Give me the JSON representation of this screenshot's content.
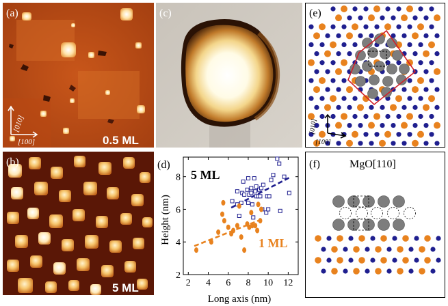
{
  "panels": {
    "a": {
      "label": "(a)",
      "coverage": "0.5 ML",
      "dir1": "[010]",
      "dir2": "[100]"
    },
    "b": {
      "label": "(b)",
      "coverage": "5 ML"
    },
    "c": {
      "label": "(c)"
    },
    "d": {
      "label": "(d)"
    },
    "e": {
      "label": "(e)",
      "dir1": "[010]",
      "dir2": "[100]"
    },
    "f": {
      "label": "(f)",
      "title": "MgO[110]"
    }
  },
  "colors": {
    "orange": "#e8821e",
    "blue": "#1f1f8f",
    "gray": "#7d7d7d",
    "red": "#d0202a"
  },
  "chart_data": {
    "type": "scatter",
    "xlabel": "Long axis (nm)",
    "ylabel": "Height (nm)",
    "xlim": [
      1.5,
      13
    ],
    "ylim": [
      2,
      9.2
    ],
    "xticks": [
      2,
      4,
      6,
      8,
      10,
      12
    ],
    "yticks": [
      2,
      4,
      6,
      8
    ],
    "series": [
      {
        "name": "5 ML",
        "marker": "open-square",
        "color": "#1f1f8f",
        "fit": [
          [
            6.3,
            6.1
          ],
          [
            12.3,
            8.0
          ]
        ],
        "points": [
          [
            6.4,
            6.5
          ],
          [
            6.9,
            6.3
          ],
          [
            6.9,
            7.1
          ],
          [
            7.1,
            5.6
          ],
          [
            7.3,
            6.4
          ],
          [
            7.4,
            7.0
          ],
          [
            7.5,
            7.7
          ],
          [
            7.6,
            6.9
          ],
          [
            7.9,
            7.2
          ],
          [
            8.0,
            7.9
          ],
          [
            8.0,
            6.4
          ],
          [
            8.1,
            6.9
          ],
          [
            8.3,
            7.3
          ],
          [
            8.3,
            7.0
          ],
          [
            8.4,
            6.3
          ],
          [
            8.5,
            5.5
          ],
          [
            8.6,
            7.9
          ],
          [
            8.7,
            7.1
          ],
          [
            8.8,
            6.8
          ],
          [
            8.8,
            7.4
          ],
          [
            9.0,
            6.8
          ],
          [
            9.1,
            7.2
          ],
          [
            9.2,
            6.8
          ],
          [
            9.3,
            7.3
          ],
          [
            9.4,
            6.0
          ],
          [
            9.5,
            7.5
          ],
          [
            9.8,
            5.8
          ],
          [
            9.9,
            6.8
          ],
          [
            10.0,
            6.0
          ],
          [
            10.1,
            6.8
          ],
          [
            10.3,
            7.8
          ],
          [
            10.5,
            8.1
          ],
          [
            10.9,
            9.1
          ],
          [
            11.1,
            8.8
          ],
          [
            11.2,
            5.9
          ],
          [
            11.6,
            8.0
          ],
          [
            12.1,
            7.0
          ]
        ]
      },
      {
        "name": "1 ML",
        "marker": "filled-circle",
        "color": "#e8821e",
        "fit": [
          [
            2.6,
            3.75
          ],
          [
            9.4,
            5.4
          ]
        ],
        "points": [
          [
            2.8,
            3.5
          ],
          [
            4.3,
            4.0
          ],
          [
            5.0,
            4.6
          ],
          [
            5.4,
            5.7
          ],
          [
            5.5,
            6.4
          ],
          [
            5.6,
            5.3
          ],
          [
            6.0,
            4.9
          ],
          [
            6.3,
            4.5
          ],
          [
            6.5,
            4.7
          ],
          [
            6.9,
            5.0
          ],
          [
            7.1,
            6.2
          ],
          [
            7.3,
            4.3
          ],
          [
            7.6,
            3.5
          ],
          [
            7.9,
            5.1
          ],
          [
            8.1,
            4.9
          ],
          [
            8.3,
            5.8
          ],
          [
            8.4,
            5.0
          ],
          [
            8.7,
            5.0
          ],
          [
            8.9,
            4.7
          ],
          [
            9.0,
            6.3
          ],
          [
            9.2,
            5.3
          ],
          [
            9.3,
            6.0
          ]
        ]
      }
    ]
  }
}
